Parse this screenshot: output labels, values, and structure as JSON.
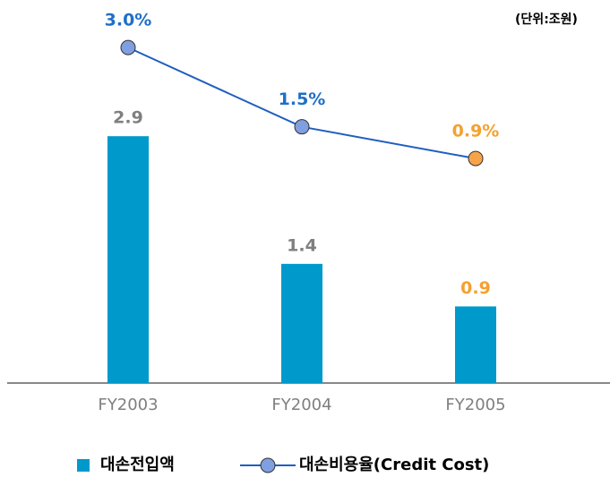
{
  "chart_data": {
    "type": "bar_line",
    "unit": "(단위:조원)",
    "categories": [
      "FY2003",
      "FY2004",
      "FY2005"
    ],
    "ylim": [
      0,
      4.5
    ],
    "y2lim": [
      -3.35,
      3.9
    ],
    "series": [
      {
        "name": "대손전입액",
        "type": "bar",
        "color": "#0099cc",
        "values": [
          2.9,
          1.4,
          0.9
        ],
        "label_colors": [
          "#7f7f7f",
          "#7f7f7f",
          "#f5a030"
        ]
      },
      {
        "name": "대손비용율(Credit Cost)",
        "type": "line",
        "axis": "y2",
        "color": "#1f5fbf",
        "values": [
          3.0,
          1.5,
          0.9
        ],
        "value_labels": [
          "3.0%",
          "1.5%",
          "0.9%"
        ],
        "marker_colors": [
          "#7f9fe0",
          "#7f9fe0",
          "#f7a34a"
        ],
        "label_colors": [
          "#1f6fc8",
          "#1f6fc8",
          "#f5a030"
        ]
      }
    ]
  }
}
